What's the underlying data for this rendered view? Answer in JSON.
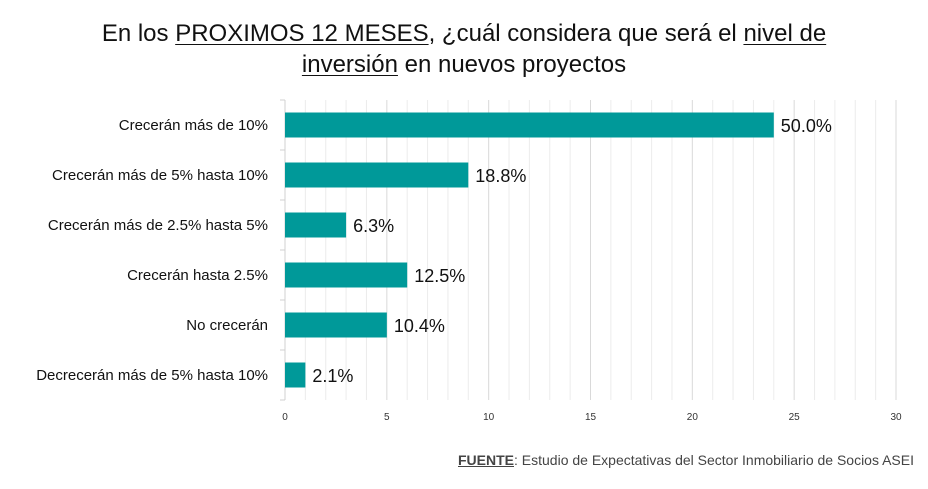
{
  "chart_data": {
    "type": "bar",
    "orientation": "horizontal",
    "title_parts": [
      {
        "text": "En los ",
        "underline": false
      },
      {
        "text": "PROXIMOS 12 MESES",
        "underline": true
      },
      {
        "text": ",  ¿cuál considera que será el ",
        "underline": false
      },
      {
        "text": "nivel de",
        "underline": true
      },
      {
        "text": "\n",
        "underline": false
      },
      {
        "text": "inversión",
        "underline": true
      },
      {
        "text": " en nuevos proyectos",
        "underline": false
      }
    ],
    "categories": [
      "Crecerán más de 10%",
      "Crecerán más de 5% hasta 10%",
      "Crecerán más de 2.5% hasta 5%",
      "Crecerán hasta 2.5%",
      "No crecerán",
      "Decrecerán más de 5% hasta 10%"
    ],
    "values": [
      24,
      9,
      3,
      6,
      5,
      1
    ],
    "data_labels": [
      "50.0%",
      "18.8%",
      "6.3%",
      "12.5%",
      "10.4%",
      "2.1%"
    ],
    "xlim": [
      0,
      30
    ],
    "xticks": [
      "0",
      "5",
      "10",
      "15",
      "20",
      "25",
      "30"
    ],
    "grid": true,
    "bar_color": "#009999"
  },
  "source": {
    "label": "FUENTE",
    "text": ": Estudio de Expectativas del Sector Inmobiliario de Socios ASEI"
  }
}
